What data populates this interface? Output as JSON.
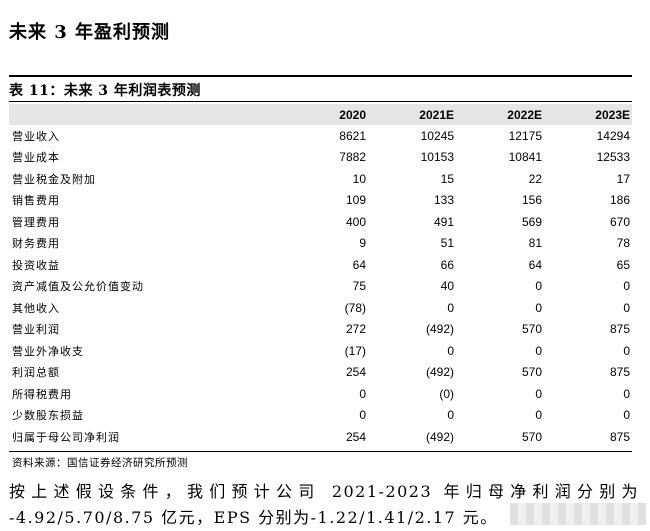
{
  "section_heading": "未来 3 年盈利预测",
  "table": {
    "title": "表 11：未来 3 年利润表预测",
    "columns": [
      "",
      "2020",
      "2021E",
      "2022E",
      "2023E"
    ],
    "rows": [
      {
        "label": "营业收入",
        "values": [
          "8621",
          "10245",
          "12175",
          "14294"
        ]
      },
      {
        "label": "营业成本",
        "values": [
          "7882",
          "10153",
          "10841",
          "12533"
        ]
      },
      {
        "label": "营业税金及附加",
        "values": [
          "10",
          "15",
          "22",
          "17"
        ]
      },
      {
        "label": "销售费用",
        "values": [
          "109",
          "133",
          "156",
          "186"
        ]
      },
      {
        "label": "管理费用",
        "values": [
          "400",
          "491",
          "569",
          "670"
        ]
      },
      {
        "label": "财务费用",
        "values": [
          "9",
          "51",
          "81",
          "78"
        ]
      },
      {
        "label": "投资收益",
        "values": [
          "64",
          "66",
          "64",
          "65"
        ]
      },
      {
        "label": "资产减值及公允价值变动",
        "values": [
          "75",
          "40",
          "0",
          "0"
        ]
      },
      {
        "label": "其他收入",
        "values": [
          "(78)",
          "0",
          "0",
          "0"
        ]
      },
      {
        "label": "营业利润",
        "values": [
          "272",
          "(492)",
          "570",
          "875"
        ]
      },
      {
        "label": "营业外净收支",
        "values": [
          "(17)",
          "0",
          "0",
          "0"
        ]
      },
      {
        "label": "利润总额",
        "values": [
          "254",
          "(492)",
          "570",
          "875"
        ]
      },
      {
        "label": "所得税费用",
        "values": [
          "0",
          "(0)",
          "0",
          "0"
        ]
      },
      {
        "label": "少数股东损益",
        "values": [
          "0",
          "0",
          "0",
          "0"
        ]
      },
      {
        "label": "归属于母公司净利润",
        "values": [
          "254",
          "(492)",
          "570",
          "875"
        ]
      }
    ]
  },
  "source_note": "资料来源：国信证券经济研究所预测",
  "paragraph": "按上述假设条件，我们预计公司 2021-2023 年归母净利润分别为 -4.92/5.70/8.75 亿元，EPS 分别为-1.22/1.41/2.17 元。"
}
